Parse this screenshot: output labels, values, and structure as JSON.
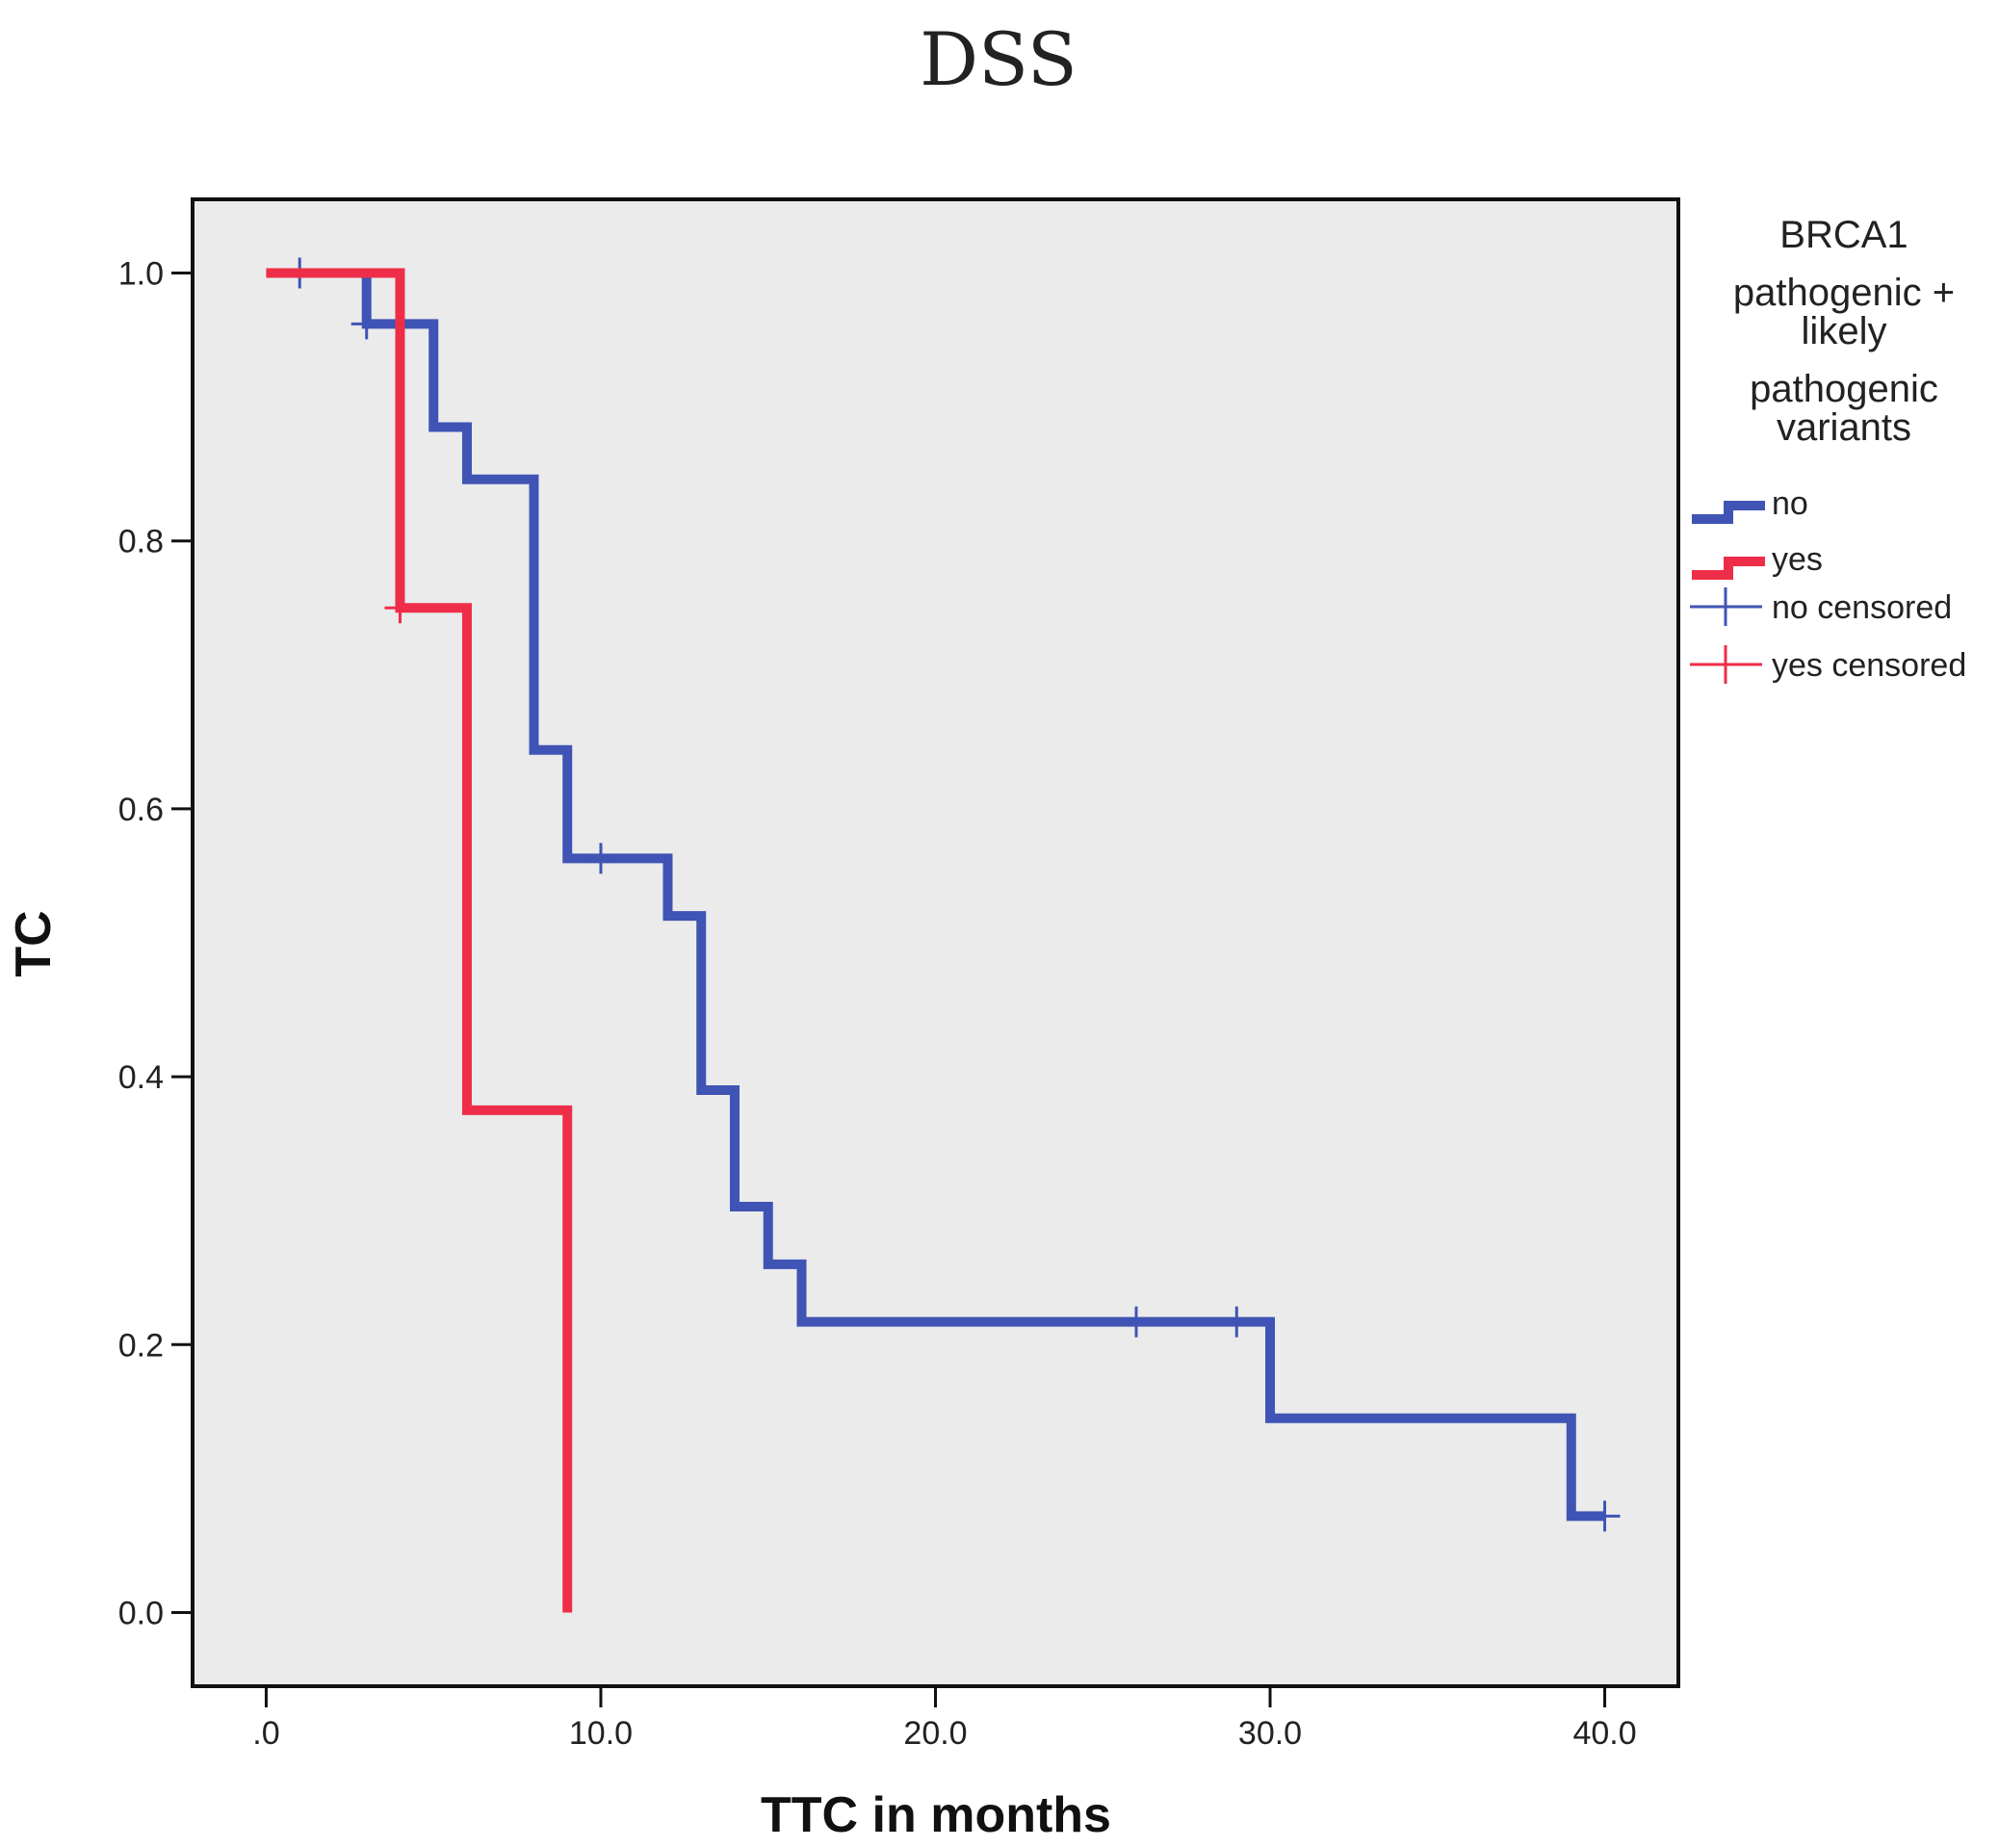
{
  "chart_data": {
    "type": "line",
    "subtype": "kaplan-meier-step",
    "title": "DSS",
    "xlabel": "TTC in months",
    "ylabel": "TC",
    "xlim": [
      -2.2,
      42.2
    ],
    "ylim": [
      -0.055,
      1.055
    ],
    "x_ticks": [
      0,
      10,
      20,
      30,
      40
    ],
    "x_tick_labels": [
      ".0",
      "10.0",
      "20.0",
      "30.0",
      "40.0"
    ],
    "y_ticks": [
      0,
      0.2,
      0.4,
      0.6,
      0.8,
      1.0
    ],
    "y_tick_labels": [
      "0.0",
      "0.2",
      "0.4",
      "0.6",
      "0.8",
      "1.0"
    ],
    "grid": false,
    "legend": {
      "title_lines": [
        "BRCA1",
        "pathogenic +",
        "likely",
        "pathogenic",
        "variants"
      ],
      "position": "right",
      "entries": [
        {
          "label": "no",
          "kind": "line",
          "series": "no"
        },
        {
          "label": "yes",
          "kind": "line",
          "series": "yes"
        },
        {
          "label": "no censored",
          "kind": "censor",
          "series": "no"
        },
        {
          "label": "yes censored",
          "kind": "censor",
          "series": "yes"
        }
      ]
    },
    "series": [
      {
        "name": "no",
        "color": "#3f54b4",
        "steps": [
          [
            0,
            1.0
          ],
          [
            3,
            0.962
          ],
          [
            5,
            0.885
          ],
          [
            6,
            0.846
          ],
          [
            8,
            0.644
          ],
          [
            9,
            0.563
          ],
          [
            12,
            0.52
          ],
          [
            13,
            0.39
          ],
          [
            14,
            0.303
          ],
          [
            15,
            0.26
          ],
          [
            16,
            0.217
          ],
          [
            30,
            0.145
          ],
          [
            39,
            0.072
          ]
        ],
        "end_x": 40,
        "censored": [
          [
            1,
            1.0
          ],
          [
            3,
            0.962
          ],
          [
            10,
            0.563
          ],
          [
            26,
            0.217
          ],
          [
            29,
            0.217
          ],
          [
            40,
            0.072
          ]
        ]
      },
      {
        "name": "yes",
        "color": "#ee2e48",
        "steps": [
          [
            0,
            1.0
          ],
          [
            4,
            0.75
          ],
          [
            6,
            0.375
          ],
          [
            9,
            0.0
          ]
        ],
        "end_x": 9,
        "censored": [
          [
            4,
            0.75
          ]
        ]
      }
    ]
  }
}
